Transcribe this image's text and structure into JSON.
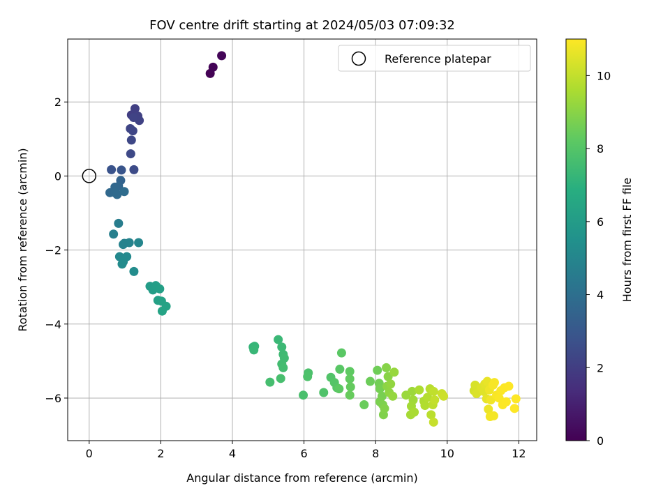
{
  "chart_data": {
    "type": "scatter",
    "title": "FOV centre drift starting at 2024/05/03 07:09:32",
    "xlabel": "Angular distance from reference (arcmin)",
    "ylabel": "Rotation from reference (arcmin)",
    "xlim": [
      -0.6,
      12.5
    ],
    "ylim": [
      -7.15,
      3.7
    ],
    "xticks": [
      0,
      2,
      4,
      6,
      8,
      10,
      12
    ],
    "yticks": [
      -6,
      -4,
      -2,
      0,
      2
    ],
    "grid": true,
    "legend": {
      "position": "top-right",
      "entries": [
        "Reference platepar"
      ]
    },
    "reference_point": {
      "x": 0,
      "y": 0,
      "label": "Reference platepar"
    },
    "colorbar": {
      "label": "Hours from first FF file",
      "range": [
        0,
        11
      ],
      "ticks": [
        0,
        2,
        4,
        6,
        8,
        10
      ],
      "colormap": "viridis"
    },
    "points": [
      [
        3.38,
        2.77,
        0.05
      ],
      [
        3.46,
        2.94,
        0.1
      ],
      [
        3.7,
        3.25,
        0.15
      ],
      [
        1.18,
        1.65,
        2.0
      ],
      [
        1.28,
        1.82,
        2.05
      ],
      [
        1.36,
        1.62,
        2.1
      ],
      [
        1.4,
        1.5,
        2.15
      ],
      [
        1.24,
        1.58,
        2.2
      ],
      [
        1.15,
        1.28,
        2.25
      ],
      [
        1.22,
        1.22,
        2.3
      ],
      [
        1.18,
        0.97,
        2.35
      ],
      [
        1.16,
        0.6,
        2.4
      ],
      [
        1.25,
        0.17,
        2.5
      ],
      [
        0.62,
        0.17,
        2.8
      ],
      [
        0.9,
        0.16,
        2.9
      ],
      [
        0.88,
        -0.12,
        3.5
      ],
      [
        0.82,
        -0.28,
        3.6
      ],
      [
        0.72,
        -0.3,
        3.65
      ],
      [
        0.58,
        -0.45,
        3.7
      ],
      [
        0.72,
        -0.45,
        3.75
      ],
      [
        0.78,
        -0.5,
        3.8
      ],
      [
        0.98,
        -0.42,
        3.85
      ],
      [
        0.82,
        -1.28,
        4.6
      ],
      [
        0.68,
        -1.57,
        4.7
      ],
      [
        0.98,
        -1.82,
        4.8
      ],
      [
        1.12,
        -1.8,
        4.9
      ],
      [
        1.38,
        -1.8,
        5.0
      ],
      [
        0.95,
        -1.85,
        4.85
      ],
      [
        0.85,
        -2.18,
        5.1
      ],
      [
        1.05,
        -2.18,
        5.15
      ],
      [
        0.95,
        -2.32,
        5.2
      ],
      [
        0.92,
        -2.38,
        5.25
      ],
      [
        1.25,
        -2.58,
        5.3
      ],
      [
        1.7,
        -2.98,
        6.0
      ],
      [
        1.78,
        -3.08,
        6.05
      ],
      [
        1.86,
        -2.96,
        6.1
      ],
      [
        1.97,
        -3.05,
        6.15
      ],
      [
        1.92,
        -3.36,
        6.2
      ],
      [
        2.02,
        -3.38,
        6.25
      ],
      [
        2.15,
        -3.52,
        6.3
      ],
      [
        2.04,
        -3.65,
        6.35
      ],
      [
        4.58,
        -4.62,
        7.2
      ],
      [
        4.62,
        -4.6,
        7.25
      ],
      [
        4.6,
        -4.7,
        7.3
      ],
      [
        5.28,
        -4.42,
        7.35
      ],
      [
        5.38,
        -4.62,
        7.4
      ],
      [
        5.42,
        -4.82,
        7.45
      ],
      [
        5.45,
        -4.92,
        7.5
      ],
      [
        5.38,
        -5.08,
        7.55
      ],
      [
        5.42,
        -5.18,
        7.6
      ],
      [
        5.05,
        -5.57,
        7.65
      ],
      [
        5.35,
        -5.47,
        7.7
      ],
      [
        5.98,
        -5.92,
        7.75
      ],
      [
        6.12,
        -5.32,
        7.8
      ],
      [
        6.1,
        -5.42,
        7.85
      ],
      [
        6.55,
        -5.85,
        7.9
      ],
      [
        6.75,
        -5.44,
        7.95
      ],
      [
        6.85,
        -5.58,
        8.0
      ],
      [
        6.92,
        -5.72,
        8.05
      ],
      [
        7.0,
        -5.22,
        8.1
      ],
      [
        7.05,
        -4.78,
        8.15
      ],
      [
        6.98,
        -5.75,
        8.2
      ],
      [
        7.28,
        -5.28,
        8.25
      ],
      [
        7.28,
        -5.48,
        8.3
      ],
      [
        7.3,
        -5.7,
        8.35
      ],
      [
        7.28,
        -5.92,
        8.4
      ],
      [
        7.68,
        -6.18,
        8.45
      ],
      [
        7.85,
        -5.55,
        8.5
      ],
      [
        8.05,
        -5.25,
        8.55
      ],
      [
        8.1,
        -5.6,
        8.6
      ],
      [
        8.12,
        -5.75,
        8.65
      ],
      [
        8.18,
        -5.95,
        8.7
      ],
      [
        8.12,
        -6.1,
        8.75
      ],
      [
        8.2,
        -6.18,
        8.8
      ],
      [
        8.22,
        -6.45,
        8.85
      ],
      [
        8.25,
        -6.28,
        8.9
      ],
      [
        8.3,
        -5.18,
        8.95
      ],
      [
        8.35,
        -5.42,
        9.0
      ],
      [
        8.32,
        -5.68,
        9.05
      ],
      [
        8.38,
        -5.85,
        9.1
      ],
      [
        8.42,
        -5.62,
        9.15
      ],
      [
        8.48,
        -5.95,
        9.2
      ],
      [
        8.52,
        -5.3,
        9.25
      ],
      [
        8.85,
        -5.92,
        9.3
      ],
      [
        9.02,
        -5.82,
        9.35
      ],
      [
        9.05,
        -6.05,
        9.4
      ],
      [
        9.0,
        -6.22,
        9.45
      ],
      [
        8.98,
        -6.45,
        9.5
      ],
      [
        9.08,
        -6.38,
        9.55
      ],
      [
        9.22,
        -5.78,
        9.6
      ],
      [
        9.35,
        -6.08,
        9.65
      ],
      [
        9.38,
        -6.2,
        9.7
      ],
      [
        9.45,
        -5.98,
        9.75
      ],
      [
        9.52,
        -5.75,
        9.8
      ],
      [
        9.55,
        -6.45,
        9.85
      ],
      [
        9.6,
        -6.18,
        9.9
      ],
      [
        9.62,
        -5.82,
        9.95
      ],
      [
        9.65,
        -6.05,
        10.0
      ],
      [
        9.62,
        -6.65,
        10.05
      ],
      [
        9.85,
        -5.88,
        10.1
      ],
      [
        9.9,
        -5.95,
        10.15
      ],
      [
        10.75,
        -5.8,
        10.3
      ],
      [
        10.78,
        -5.65,
        10.35
      ],
      [
        10.82,
        -5.88,
        10.4
      ],
      [
        10.95,
        -5.72,
        10.45
      ],
      [
        11.02,
        -5.82,
        10.5
      ],
      [
        11.05,
        -5.62,
        10.55
      ],
      [
        11.1,
        -6.02,
        10.6
      ],
      [
        11.12,
        -5.55,
        10.65
      ],
      [
        11.15,
        -6.3,
        10.7
      ],
      [
        11.18,
        -5.78,
        10.75
      ],
      [
        11.22,
        -6.05,
        10.8
      ],
      [
        11.2,
        -6.5,
        10.82
      ],
      [
        11.3,
        -6.48,
        10.85
      ],
      [
        11.28,
        -5.65,
        10.88
      ],
      [
        11.32,
        -5.58,
        10.9
      ],
      [
        11.38,
        -5.92,
        10.92
      ],
      [
        11.45,
        -6.0,
        10.94
      ],
      [
        11.5,
        -5.8,
        10.96
      ],
      [
        11.55,
        -6.18,
        10.97
      ],
      [
        11.6,
        -5.72,
        10.98
      ],
      [
        11.65,
        -6.1,
        10.99
      ],
      [
        11.72,
        -5.68,
        11.0
      ],
      [
        11.92,
        -6.02,
        11.0
      ],
      [
        11.88,
        -6.28,
        11.0
      ]
    ]
  }
}
